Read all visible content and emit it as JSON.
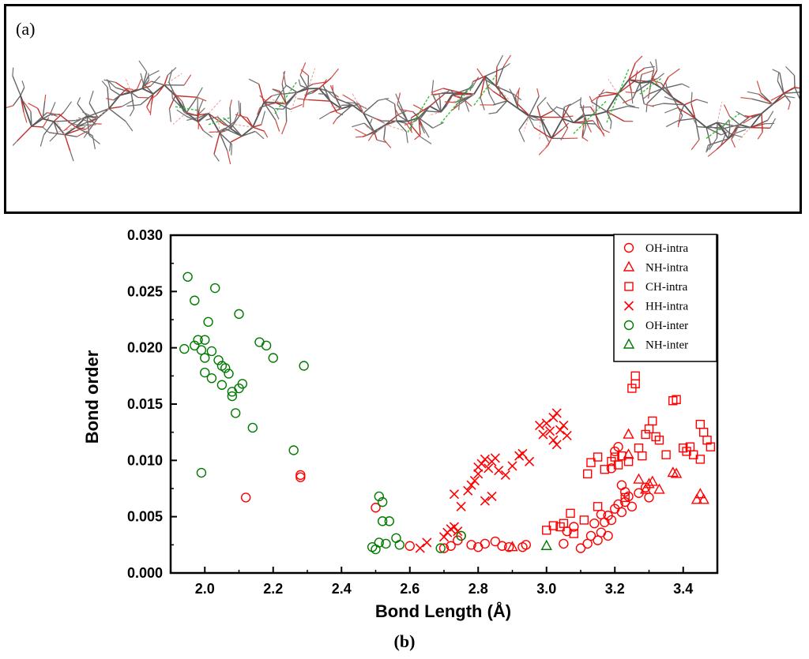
{
  "panel_a": {
    "label": "(a)",
    "image_icon": "molecular-structure-icon"
  },
  "panel_b_label": "(b)",
  "chart_data": {
    "type": "scatter",
    "title": "",
    "xlabel": "Bond Length (Å)",
    "ylabel": "Bond order",
    "xlim": [
      1.9,
      3.5
    ],
    "ylim": [
      0.0,
      0.03
    ],
    "xticks": [
      "2.0",
      "2.2",
      "2.4",
      "2.6",
      "2.8",
      "3.0",
      "3.2",
      "3.4"
    ],
    "yticks": [
      "0.000",
      "0.005",
      "0.010",
      "0.015",
      "0.020",
      "0.025",
      "0.030"
    ],
    "legend_position": "top-right",
    "colors": {
      "intra": "#ff0000",
      "inter": "#007a00"
    },
    "series": [
      {
        "name": "OH-intra",
        "marker": "circle",
        "color": "#ff0000",
        "points": [
          [
            2.12,
            0.0067
          ],
          [
            2.28,
            0.0085
          ],
          [
            2.28,
            0.0087
          ],
          [
            2.5,
            0.0058
          ],
          [
            2.6,
            0.0024
          ],
          [
            2.7,
            0.0022
          ],
          [
            2.72,
            0.0024
          ],
          [
            2.74,
            0.0029
          ],
          [
            2.75,
            0.0033
          ],
          [
            2.78,
            0.0025
          ],
          [
            2.8,
            0.0023
          ],
          [
            2.82,
            0.0026
          ],
          [
            2.85,
            0.0028
          ],
          [
            2.87,
            0.0024
          ],
          [
            2.89,
            0.0023
          ],
          [
            2.93,
            0.0023
          ],
          [
            2.94,
            0.0025
          ],
          [
            3.05,
            0.0026
          ],
          [
            3.06,
            0.0037
          ],
          [
            3.08,
            0.0041
          ],
          [
            3.1,
            0.0022
          ],
          [
            3.12,
            0.0026
          ],
          [
            3.13,
            0.0033
          ],
          [
            3.15,
            0.0029
          ],
          [
            3.16,
            0.0036
          ],
          [
            3.17,
            0.0045
          ],
          [
            3.18,
            0.0051
          ],
          [
            3.19,
            0.0047
          ],
          [
            3.2,
            0.0057
          ],
          [
            3.21,
            0.0061
          ],
          [
            3.22,
            0.0054
          ],
          [
            3.23,
            0.0063
          ],
          [
            3.24,
            0.0068
          ],
          [
            3.25,
            0.0059
          ],
          [
            3.19,
            0.0093
          ],
          [
            3.2,
            0.0108
          ],
          [
            3.21,
            0.0112
          ],
          [
            3.22,
            0.0078
          ],
          [
            3.23,
            0.0072
          ],
          [
            3.18,
            0.0033
          ],
          [
            3.16,
            0.0052
          ],
          [
            3.14,
            0.0044
          ],
          [
            3.27,
            0.0071
          ],
          [
            3.29,
            0.0076
          ],
          [
            3.3,
            0.0067
          ]
        ]
      },
      {
        "name": "NH-intra",
        "marker": "triangle",
        "color": "#ff0000",
        "points": [
          [
            2.9,
            0.0023
          ],
          [
            3.24,
            0.0123
          ],
          [
            3.24,
            0.0105
          ],
          [
            3.27,
            0.0083
          ],
          [
            3.29,
            0.0074
          ],
          [
            3.3,
            0.0079
          ],
          [
            3.31,
            0.0081
          ],
          [
            3.33,
            0.0074
          ],
          [
            3.37,
            0.0089
          ],
          [
            3.38,
            0.0088
          ],
          [
            3.44,
            0.0065
          ],
          [
            3.45,
            0.007
          ],
          [
            3.46,
            0.0065
          ]
        ]
      },
      {
        "name": "CH-intra",
        "marker": "square",
        "color": "#ff0000",
        "points": [
          [
            3.0,
            0.0038
          ],
          [
            3.02,
            0.0042
          ],
          [
            3.04,
            0.0041
          ],
          [
            3.05,
            0.0044
          ],
          [
            3.07,
            0.0053
          ],
          [
            3.08,
            0.0035
          ],
          [
            3.11,
            0.0047
          ],
          [
            3.12,
            0.0088
          ],
          [
            3.13,
            0.0098
          ],
          [
            3.15,
            0.0059
          ],
          [
            3.15,
            0.0103
          ],
          [
            3.17,
            0.0092
          ],
          [
            3.19,
            0.0099
          ],
          [
            3.2,
            0.0103
          ],
          [
            3.21,
            0.0096
          ],
          [
            3.22,
            0.0104
          ],
          [
            3.23,
            0.0067
          ],
          [
            3.24,
            0.0099
          ],
          [
            3.25,
            0.0164
          ],
          [
            3.26,
            0.0168
          ],
          [
            3.26,
            0.0175
          ],
          [
            3.27,
            0.0111
          ],
          [
            3.28,
            0.0104
          ],
          [
            3.29,
            0.0123
          ],
          [
            3.3,
            0.0128
          ],
          [
            3.31,
            0.0135
          ],
          [
            3.32,
            0.0121
          ],
          [
            3.33,
            0.0118
          ],
          [
            3.35,
            0.0105
          ],
          [
            3.37,
            0.0153
          ],
          [
            3.38,
            0.0154
          ],
          [
            3.4,
            0.0111
          ],
          [
            3.41,
            0.0108
          ],
          [
            3.42,
            0.0112
          ],
          [
            3.43,
            0.0105
          ],
          [
            3.45,
            0.0132
          ],
          [
            3.46,
            0.0125
          ],
          [
            3.47,
            0.0118
          ],
          [
            3.48,
            0.0112
          ],
          [
            3.45,
            0.0101
          ]
        ]
      },
      {
        "name": "HH-intra",
        "marker": "x",
        "color": "#ff0000",
        "points": [
          [
            2.63,
            0.0022
          ],
          [
            2.65,
            0.0027
          ],
          [
            2.7,
            0.0032
          ],
          [
            2.71,
            0.0036
          ],
          [
            2.72,
            0.0039
          ],
          [
            2.73,
            0.0041
          ],
          [
            2.74,
            0.0037
          ],
          [
            2.73,
            0.007
          ],
          [
            2.75,
            0.0059
          ],
          [
            2.77,
            0.0073
          ],
          [
            2.78,
            0.0078
          ],
          [
            2.79,
            0.0082
          ],
          [
            2.8,
            0.0088
          ],
          [
            2.8,
            0.0094
          ],
          [
            2.81,
            0.0097
          ],
          [
            2.82,
            0.0101
          ],
          [
            2.83,
            0.0093
          ],
          [
            2.84,
            0.0099
          ],
          [
            2.85,
            0.0102
          ],
          [
            2.86,
            0.0091
          ],
          [
            2.82,
            0.0064
          ],
          [
            2.84,
            0.0068
          ],
          [
            2.88,
            0.0087
          ],
          [
            2.9,
            0.0095
          ],
          [
            2.92,
            0.0104
          ],
          [
            2.93,
            0.0106
          ],
          [
            2.95,
            0.0099
          ],
          [
            2.98,
            0.0131
          ],
          [
            3.0,
            0.0133
          ],
          [
            3.01,
            0.0126
          ],
          [
            3.02,
            0.0138
          ],
          [
            3.02,
            0.0118
          ],
          [
            3.03,
            0.0142
          ],
          [
            3.04,
            0.0127
          ],
          [
            3.05,
            0.0131
          ],
          [
            3.06,
            0.0122
          ],
          [
            3.03,
            0.0114
          ],
          [
            2.99,
            0.0123
          ]
        ]
      },
      {
        "name": "OH-inter",
        "marker": "circle",
        "color": "#007a00",
        "points": [
          [
            1.94,
            0.0199
          ],
          [
            1.95,
            0.0263
          ],
          [
            1.97,
            0.0242
          ],
          [
            1.97,
            0.0202
          ],
          [
            1.98,
            0.0207
          ],
          [
            1.99,
            0.0089
          ],
          [
            1.99,
            0.0198
          ],
          [
            2.0,
            0.0191
          ],
          [
            2.0,
            0.0207
          ],
          [
            2.0,
            0.0178
          ],
          [
            2.01,
            0.0223
          ],
          [
            2.02,
            0.0173
          ],
          [
            2.02,
            0.0197
          ],
          [
            2.03,
            0.0253
          ],
          [
            2.04,
            0.0189
          ],
          [
            2.05,
            0.0184
          ],
          [
            2.05,
            0.0167
          ],
          [
            2.06,
            0.0182
          ],
          [
            2.07,
            0.0177
          ],
          [
            2.08,
            0.0161
          ],
          [
            2.08,
            0.0157
          ],
          [
            2.09,
            0.0142
          ],
          [
            2.1,
            0.0164
          ],
          [
            2.1,
            0.023
          ],
          [
            2.11,
            0.0168
          ],
          [
            2.14,
            0.0129
          ],
          [
            2.16,
            0.0205
          ],
          [
            2.18,
            0.0202
          ],
          [
            2.2,
            0.0191
          ],
          [
            2.26,
            0.0109
          ],
          [
            2.29,
            0.0184
          ],
          [
            2.49,
            0.0023
          ],
          [
            2.5,
            0.0021
          ],
          [
            2.51,
            0.0068
          ],
          [
            2.51,
            0.0027
          ],
          [
            2.52,
            0.0063
          ],
          [
            2.52,
            0.0046
          ],
          [
            2.53,
            0.0026
          ],
          [
            2.54,
            0.0046
          ],
          [
            2.56,
            0.0031
          ],
          [
            2.57,
            0.0025
          ],
          [
            2.69,
            0.0022
          ],
          [
            2.75,
            0.0033
          ]
        ]
      },
      {
        "name": "NH-inter",
        "marker": "triangle",
        "color": "#007a00",
        "points": [
          [
            3.0,
            0.0024
          ]
        ]
      }
    ]
  }
}
